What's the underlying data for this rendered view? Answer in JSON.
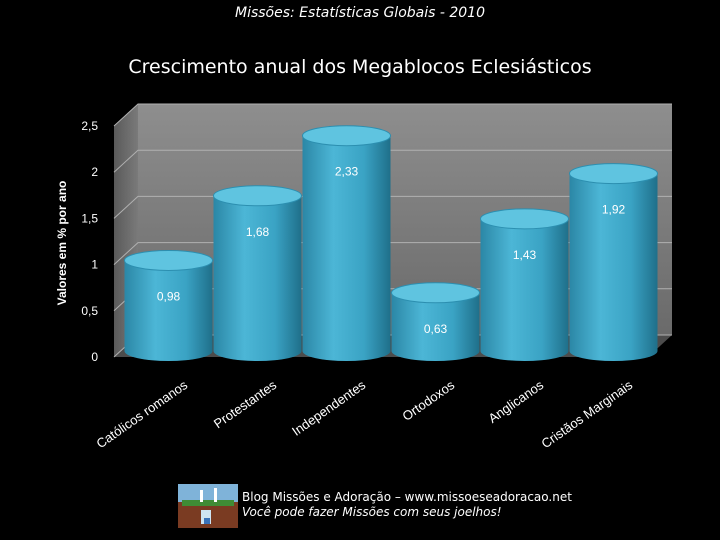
{
  "header": {
    "supertitle": "Missões: Estatísticas Globais - 2010"
  },
  "chart_data": {
    "type": "bar",
    "title": "Crescimento anual dos Megablocos Eclesiásticos",
    "ylabel": "Valores em % por ano",
    "xlabel": "",
    "categories": [
      "Católicos romanos",
      "Protestantes",
      "Independentes",
      "Ortodoxos",
      "Anglicanos",
      "Cristãos Marginais"
    ],
    "values": [
      0.98,
      1.68,
      2.33,
      0.63,
      1.43,
      1.92
    ],
    "value_labels": [
      "0,98",
      "1,68",
      "2,33",
      "0,63",
      "1,43",
      "1,92"
    ],
    "y_ticks": [
      0,
      0.5,
      1,
      1.5,
      2,
      2.5
    ],
    "y_tick_labels": [
      "0",
      "0,5",
      "1",
      "1,5",
      "2",
      "2,5"
    ],
    "ylim": [
      0,
      2.5
    ],
    "grid": true,
    "legend": "none",
    "bar_color": "#3fa9c9",
    "bar_top_color": "#5fc4e0"
  },
  "footer": {
    "line1": "Blog Missões e Adoração – www.missoeseadoracao.net",
    "line2": "Você pode fazer Missões com seus joelhos!"
  }
}
